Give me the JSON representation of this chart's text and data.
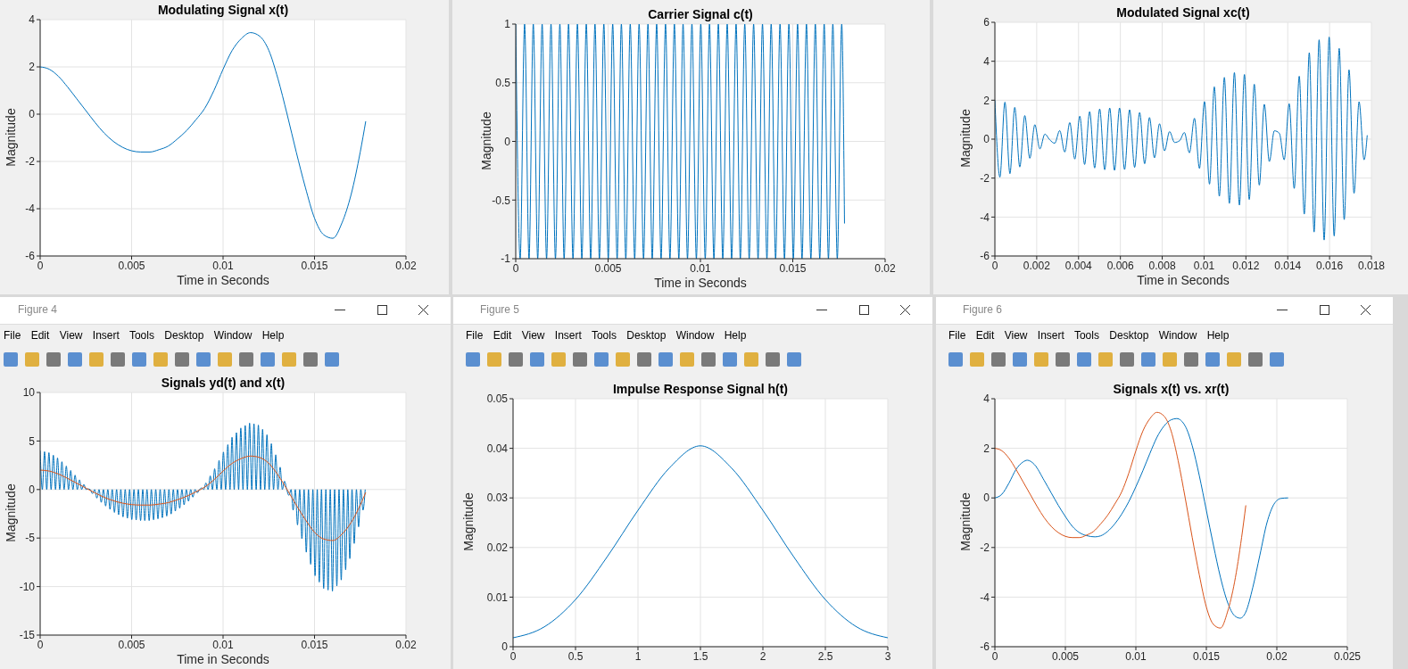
{
  "chart_data": [
    {
      "type": "line",
      "title": "Modulating Signal x(t)",
      "xlabel": "Time in Seconds",
      "ylabel": "Magnitude",
      "xlim": [
        0,
        0.02
      ],
      "xticks": [
        0,
        0.005,
        0.01,
        0.015,
        0.02
      ],
      "ylim": [
        -6,
        4
      ],
      "yticks": [
        -6,
        -4,
        -2,
        0,
        2,
        4
      ],
      "grid": true,
      "series": [
        {
          "color": "#0072bd",
          "x": [
            0,
            0.0005,
            0.001,
            0.0015,
            0.002,
            0.0025,
            0.003,
            0.0035,
            0.004,
            0.0045,
            0.005,
            0.0055,
            0.006,
            0.0065,
            0.007,
            0.0075,
            0.008,
            0.0085,
            0.009,
            0.0095,
            0.01,
            0.0105,
            0.011,
            0.0115,
            0.012,
            0.0125,
            0.013,
            0.0135,
            0.014,
            0.0145,
            0.015,
            0.0155,
            0.016,
            0.0165,
            0.017,
            0.0175,
            0.0178
          ],
          "values": [
            2.0,
            1.9,
            1.6,
            1.15,
            0.65,
            0.15,
            -0.35,
            -0.8,
            -1.15,
            -1.4,
            -1.55,
            -1.6,
            -1.6,
            -1.5,
            -1.35,
            -1.05,
            -0.7,
            -0.25,
            0.25,
            1.0,
            1.9,
            2.7,
            3.2,
            3.45,
            3.3,
            2.7,
            1.5,
            0.0,
            -1.6,
            -3.1,
            -4.4,
            -5.1,
            -5.25,
            -4.6,
            -3.4,
            -1.6,
            -0.3
          ]
        }
      ]
    },
    {
      "type": "line",
      "title": "Carrier Signal c(t)",
      "xlabel": "Time in Seconds",
      "ylabel": "Magnitude",
      "xlim": [
        0,
        0.02
      ],
      "xticks": [
        0,
        0.005,
        0.01,
        0.015,
        0.02
      ],
      "ylim": [
        -1,
        1
      ],
      "yticks": [
        -1,
        -0.5,
        0,
        0.5,
        1
      ],
      "grid": true,
      "series": [
        {
          "color": "#0072bd",
          "x": [
            0,
            0.00024,
            0.00048,
            0.00072,
            0.00095,
            0.00119,
            0.00143,
            0.00167,
            0.00191,
            0.00215,
            0.00239,
            0.00262,
            0.00286,
            0.0031,
            0.00334,
            0.00358,
            0.00382,
            0.00406,
            0.00429,
            0.00453,
            0.00477,
            0.00501,
            0.00525,
            0.00549,
            0.00572,
            0.00596,
            0.0062,
            0.00644,
            0.00668,
            0.00692,
            0.00716,
            0.00739,
            0.00763,
            0.00787,
            0.00811,
            0.00835,
            0.00859,
            0.00883,
            0.00906,
            0.0093,
            0.00954,
            0.00978,
            0.01002,
            0.01026,
            0.01049,
            0.01073,
            0.01097,
            0.01121,
            0.01145,
            0.01169,
            0.01193,
            0.01216,
            0.0124,
            0.01264,
            0.01288,
            0.01312,
            0.01336,
            0.0136,
            0.01383,
            0.01407,
            0.01431,
            0.01455,
            0.01479,
            0.01503,
            0.01526,
            0.0155,
            0.01574,
            0.01598,
            0.01622,
            0.01646,
            0.0167,
            0.01693,
            0.01717,
            0.01741,
            0.01765,
            0.0178
          ],
          "values": [
            1,
            -1,
            1,
            -1,
            1,
            -1,
            1,
            -1,
            1,
            -1,
            1,
            -1,
            1,
            -1,
            1,
            -1,
            1,
            -1,
            1,
            -1,
            1,
            -1,
            1,
            -1,
            1,
            -1,
            1,
            -1,
            1,
            -1,
            1,
            -1,
            1,
            -1,
            1,
            -1,
            1,
            -1,
            1,
            -1,
            1,
            -1,
            1,
            -1,
            1,
            -1,
            1,
            -1,
            1,
            -1,
            1,
            -1,
            1,
            -1,
            1,
            -1,
            1,
            -1,
            1,
            -1,
            1,
            -1,
            1,
            -1,
            1,
            -1,
            1,
            -1,
            1,
            -1,
            1,
            -1,
            1,
            -1,
            1,
            -0.7
          ]
        }
      ]
    },
    {
      "type": "line",
      "title": "Modulated Signal xc(t)",
      "xlabel": "Time in Seconds",
      "ylabel": "Magnitude",
      "xlim": [
        0,
        0.018
      ],
      "xticks": [
        0,
        0.002,
        0.004,
        0.006,
        0.008,
        0.01,
        0.012,
        0.014,
        0.016,
        0.018
      ],
      "ylim": [
        -6,
        6
      ],
      "yticks": [
        -6,
        -4,
        -2,
        0,
        2,
        4,
        6
      ],
      "grid": true,
      "series": [
        {
          "color": "#0072bd",
          "x": [
            0,
            0.00024,
            0.00048,
            0.00072,
            0.00095,
            0.00119,
            0.00143,
            0.00167,
            0.00191,
            0.00215,
            0.00239,
            0.00262,
            0.00286,
            0.0031,
            0.00334,
            0.00358,
            0.00382,
            0.00406,
            0.00429,
            0.00453,
            0.00477,
            0.00501,
            0.00525,
            0.00549,
            0.00572,
            0.00596,
            0.0062,
            0.00644,
            0.00668,
            0.00692,
            0.00716,
            0.00739,
            0.00763,
            0.00787,
            0.00811,
            0.00835,
            0.00859,
            0.00883,
            0.00906,
            0.0093,
            0.00954,
            0.00978,
            0.01002,
            0.01026,
            0.01049,
            0.01073,
            0.01097,
            0.01121,
            0.01145,
            0.01169,
            0.01193,
            0.01216,
            0.0124,
            0.01264,
            0.01288,
            0.01312,
            0.01336,
            0.0136,
            0.01383,
            0.01407,
            0.01431,
            0.01455,
            0.01479,
            0.01503,
            0.01526,
            0.0155,
            0.01574,
            0.01598,
            0.01622,
            0.01646,
            0.0167,
            0.01693,
            0.01717,
            0.01741,
            0.01765,
            0.0178
          ],
          "values": [
            2.0,
            -1.95,
            1.9,
            -1.77,
            1.63,
            -1.43,
            1.21,
            -0.98,
            0.74,
            -0.5,
            0.26,
            -0.03,
            -0.21,
            0.44,
            -0.66,
            0.85,
            -1.02,
            1.18,
            -1.3,
            1.41,
            -1.48,
            1.55,
            -1.57,
            1.6,
            -1.6,
            1.6,
            -1.56,
            1.51,
            -1.45,
            1.37,
            -1.26,
            1.11,
            -0.96,
            0.79,
            -0.6,
            0.39,
            -0.17,
            -0.08,
            0.34,
            -0.7,
            1.07,
            -1.5,
            1.93,
            -2.31,
            2.69,
            -2.93,
            3.17,
            -3.3,
            3.42,
            -3.39,
            3.32,
            -3.1,
            2.82,
            -2.36,
            1.79,
            -1.15,
            0.43,
            0.3,
            -1.06,
            1.82,
            -2.53,
            3.23,
            -3.85,
            4.44,
            -4.77,
            5.1,
            -5.18,
            5.24,
            -4.97,
            4.66,
            -4.13,
            3.56,
            -2.78,
            1.92,
            -1.06,
            0.2
          ]
        }
      ]
    },
    {
      "type": "line",
      "title": "Signals yd(t) and x(t)",
      "xlabel": "Time in Seconds",
      "ylabel": "Magnitude",
      "xlim": [
        0,
        0.02
      ],
      "xticks": [
        0,
        0.005,
        0.01,
        0.015,
        0.02
      ],
      "ylim": [
        -15,
        10
      ],
      "yticks": [
        -15,
        -10,
        -5,
        0,
        5,
        10
      ],
      "grid": true,
      "annotations": [
        "Figure 4",
        "File Edit View Insert Tools Desktop Window Help"
      ],
      "series": [
        {
          "color": "#0072bd",
          "x": [
            0,
            0.00012,
            0.00024,
            0.00036,
            0.00048,
            0.0006,
            0.00072,
            0.00084,
            0.00095,
            0.00107,
            0.00119,
            0.00131,
            0.00143,
            0.00155,
            0.00167,
            0.00179,
            0.00191,
            0.00203,
            0.00215,
            0.00227,
            0.00239,
            0.00251,
            0.00262,
            0.00274,
            0.00286,
            0.00298,
            0.0031,
            0.00322,
            0.00334,
            0.00346,
            0.00358,
            0.0037,
            0.00382,
            0.00394,
            0.00406,
            0.00418,
            0.00429,
            0.00441,
            0.00453,
            0.00465,
            0.00477,
            0.00489,
            0.00501,
            0.00513,
            0.00525,
            0.00537,
            0.00549,
            0.00561,
            0.00572,
            0.00584,
            0.00596,
            0.00608,
            0.0062,
            0.00632,
            0.00644,
            0.00656,
            0.00668,
            0.0068,
            0.00692,
            0.00704,
            0.00716,
            0.00728,
            0.00739,
            0.00751,
            0.00763,
            0.00775,
            0.00787,
            0.00799,
            0.00811,
            0.00823,
            0.00835,
            0.00847,
            0.00859,
            0.00871,
            0.00883,
            0.00895,
            0.00906,
            0.00918,
            0.0093,
            0.00942,
            0.00954,
            0.00966,
            0.00978,
            0.0099,
            0.01002,
            0.01014,
            0.01026,
            0.01038,
            0.01049,
            0.01061,
            0.01073,
            0.01085,
            0.01097,
            0.01109,
            0.01121,
            0.01133,
            0.01145,
            0.01157,
            0.01169,
            0.01181,
            0.01193,
            0.01205,
            0.01216,
            0.01228,
            0.0124,
            0.01252,
            0.01264,
            0.01276,
            0.01288,
            0.013,
            0.01312,
            0.01324,
            0.01336,
            0.01348,
            0.0136,
            0.01372,
            0.01383,
            0.01395,
            0.01407,
            0.01419,
            0.01431,
            0.01443,
            0.01455,
            0.01467,
            0.01479,
            0.01491,
            0.01503,
            0.01515,
            0.01526,
            0.01538,
            0.0155,
            0.01562,
            0.01574,
            0.01586,
            0.01598,
            0.0161,
            0.01622,
            0.01634,
            0.01646,
            0.01658,
            0.0167,
            0.01682,
            0.01693,
            0.01705,
            0.01717,
            0.01729,
            0.01741,
            0.01753,
            0.01765,
            0.01777
          ],
          "values": [
            4.0,
            0,
            3.9,
            0,
            3.8,
            0,
            3.54,
            0,
            3.26,
            0,
            2.86,
            0,
            2.42,
            0,
            1.96,
            0,
            1.48,
            0,
            1.0,
            0,
            0.52,
            0,
            0.06,
            0,
            -0.42,
            0,
            -0.88,
            0,
            -1.32,
            0,
            -1.7,
            0,
            -2.04,
            0,
            -2.36,
            0,
            -2.6,
            0,
            -2.82,
            0,
            -2.96,
            0,
            -3.1,
            0,
            -3.14,
            0,
            -3.2,
            0,
            -3.2,
            0,
            -3.2,
            0,
            -3.12,
            0,
            -3.02,
            0,
            -2.9,
            0,
            -2.74,
            0,
            -2.52,
            0,
            -2.22,
            0,
            -1.92,
            0,
            -1.58,
            0,
            -1.2,
            0,
            -0.78,
            0,
            -0.34,
            0,
            0.16,
            0,
            0.68,
            0,
            1.4,
            0,
            2.14,
            0,
            3.0,
            0,
            3.86,
            0,
            4.62,
            0,
            5.38,
            0,
            5.86,
            0,
            6.34,
            0,
            6.6,
            0,
            6.84,
            0,
            6.78,
            0,
            6.64,
            0,
            6.2,
            0,
            5.64,
            0,
            4.72,
            0,
            3.58,
            0,
            2.3,
            0,
            0.86,
            0,
            -0.6,
            0,
            -2.12,
            0,
            -3.64,
            0,
            -5.06,
            0,
            -6.46,
            0,
            -7.7,
            0,
            -8.88,
            0,
            -9.54,
            0,
            -10.2,
            0,
            -10.36,
            0,
            -10.48,
            0,
            -9.94,
            0,
            -9.32,
            0,
            -8.26,
            0,
            -7.12,
            0,
            -5.56,
            0,
            -3.84,
            0,
            -2.12,
            0
          ]
        },
        {
          "color": "#d95319",
          "x": [
            0,
            0.0005,
            0.001,
            0.0015,
            0.002,
            0.0025,
            0.003,
            0.0035,
            0.004,
            0.0045,
            0.005,
            0.0055,
            0.006,
            0.0065,
            0.007,
            0.0075,
            0.008,
            0.0085,
            0.009,
            0.0095,
            0.01,
            0.0105,
            0.011,
            0.0115,
            0.012,
            0.0125,
            0.013,
            0.0135,
            0.014,
            0.0145,
            0.015,
            0.0155,
            0.016,
            0.0165,
            0.017,
            0.0175,
            0.0178
          ],
          "values": [
            2.0,
            1.9,
            1.6,
            1.15,
            0.65,
            0.15,
            -0.35,
            -0.8,
            -1.15,
            -1.4,
            -1.55,
            -1.6,
            -1.6,
            -1.5,
            -1.35,
            -1.05,
            -0.7,
            -0.25,
            0.25,
            1.0,
            1.9,
            2.7,
            3.2,
            3.45,
            3.3,
            2.7,
            1.5,
            0.0,
            -1.6,
            -3.1,
            -4.4,
            -5.1,
            -5.25,
            -4.6,
            -3.4,
            -1.6,
            -0.3
          ]
        }
      ]
    },
    {
      "type": "line",
      "title": "Impulse Response Signal h(t)",
      "ylabel": "Magnitude",
      "xlim": [
        0,
        3
      ],
      "xticks": [
        0,
        0.5,
        1,
        1.5,
        2,
        2.5,
        3
      ],
      "ylim": [
        0,
        0.05
      ],
      "yticks": [
        0,
        0.01,
        0.02,
        0.03,
        0.04,
        0.05
      ],
      "grid": true,
      "annotations": [
        "Figure 5",
        "File Edit View Insert Tools Desktop Window Help"
      ],
      "series": [
        {
          "color": "#0072bd",
          "x": [
            0,
            0.25,
            0.5,
            0.75,
            1,
            1.25,
            1.5,
            1.75,
            2,
            2.25,
            2.5,
            2.75,
            3
          ],
          "values": [
            0.0018,
            0.004,
            0.0095,
            0.018,
            0.0275,
            0.036,
            0.0405,
            0.036,
            0.0275,
            0.018,
            0.0095,
            0.004,
            0.0018
          ]
        }
      ]
    },
    {
      "type": "line",
      "title": "Signals x(t) vs. xr(t)",
      "ylabel": "Magnitude",
      "xlim": [
        0,
        0.025
      ],
      "xticks": [
        0,
        0.005,
        0.01,
        0.015,
        0.02,
        0.025
      ],
      "ylim": [
        -6,
        4
      ],
      "yticks": [
        -6,
        -4,
        -2,
        0,
        2,
        4
      ],
      "grid": true,
      "annotations": [
        "Figure 6",
        "File Edit View Insert Tools Desktop Window Help"
      ],
      "series": [
        {
          "color": "#0072bd",
          "x": [
            0,
            0.0005,
            0.001,
            0.0015,
            0.002,
            0.0023,
            0.0028,
            0.0035,
            0.004,
            0.0045,
            0.005,
            0.0055,
            0.006,
            0.0065,
            0.0071,
            0.0075,
            0.008,
            0.0085,
            0.009,
            0.0095,
            0.01,
            0.0105,
            0.011,
            0.0115,
            0.012,
            0.0125,
            0.0129,
            0.0135,
            0.014,
            0.0145,
            0.015,
            0.0155,
            0.016,
            0.0165,
            0.017,
            0.0174,
            0.0178,
            0.0183,
            0.0188,
            0.0193,
            0.0198,
            0.0203,
            0.0208
          ],
          "values": [
            0,
            0.15,
            0.6,
            1.15,
            1.45,
            1.52,
            1.35,
            0.7,
            0.2,
            -0.3,
            -0.75,
            -1.15,
            -1.4,
            -1.52,
            -1.57,
            -1.53,
            -1.35,
            -1.05,
            -0.65,
            -0.15,
            0.45,
            1.1,
            1.8,
            2.45,
            2.9,
            3.15,
            3.2,
            2.9,
            2.1,
            0.9,
            -0.5,
            -1.9,
            -3.2,
            -4.2,
            -4.75,
            -4.85,
            -4.6,
            -3.6,
            -2.3,
            -1.0,
            -0.25,
            -0.02,
            0
          ]
        },
        {
          "color": "#d95319",
          "x": [
            0,
            0.0005,
            0.001,
            0.0015,
            0.002,
            0.0025,
            0.003,
            0.0035,
            0.004,
            0.0045,
            0.005,
            0.0055,
            0.006,
            0.0065,
            0.007,
            0.0075,
            0.008,
            0.0085,
            0.009,
            0.0095,
            0.01,
            0.0105,
            0.011,
            0.0115,
            0.012,
            0.0125,
            0.013,
            0.0135,
            0.014,
            0.0145,
            0.015,
            0.0155,
            0.016,
            0.0165,
            0.017,
            0.0175,
            0.0178
          ],
          "values": [
            2.0,
            1.9,
            1.6,
            1.15,
            0.65,
            0.15,
            -0.35,
            -0.8,
            -1.15,
            -1.4,
            -1.55,
            -1.6,
            -1.6,
            -1.5,
            -1.35,
            -1.05,
            -0.7,
            -0.25,
            0.25,
            1.0,
            1.9,
            2.7,
            3.2,
            3.45,
            3.3,
            2.7,
            1.5,
            0.0,
            -1.6,
            -3.1,
            -4.4,
            -5.1,
            -5.25,
            -4.6,
            -3.4,
            -1.6,
            -0.3
          ]
        }
      ]
    }
  ]
}
